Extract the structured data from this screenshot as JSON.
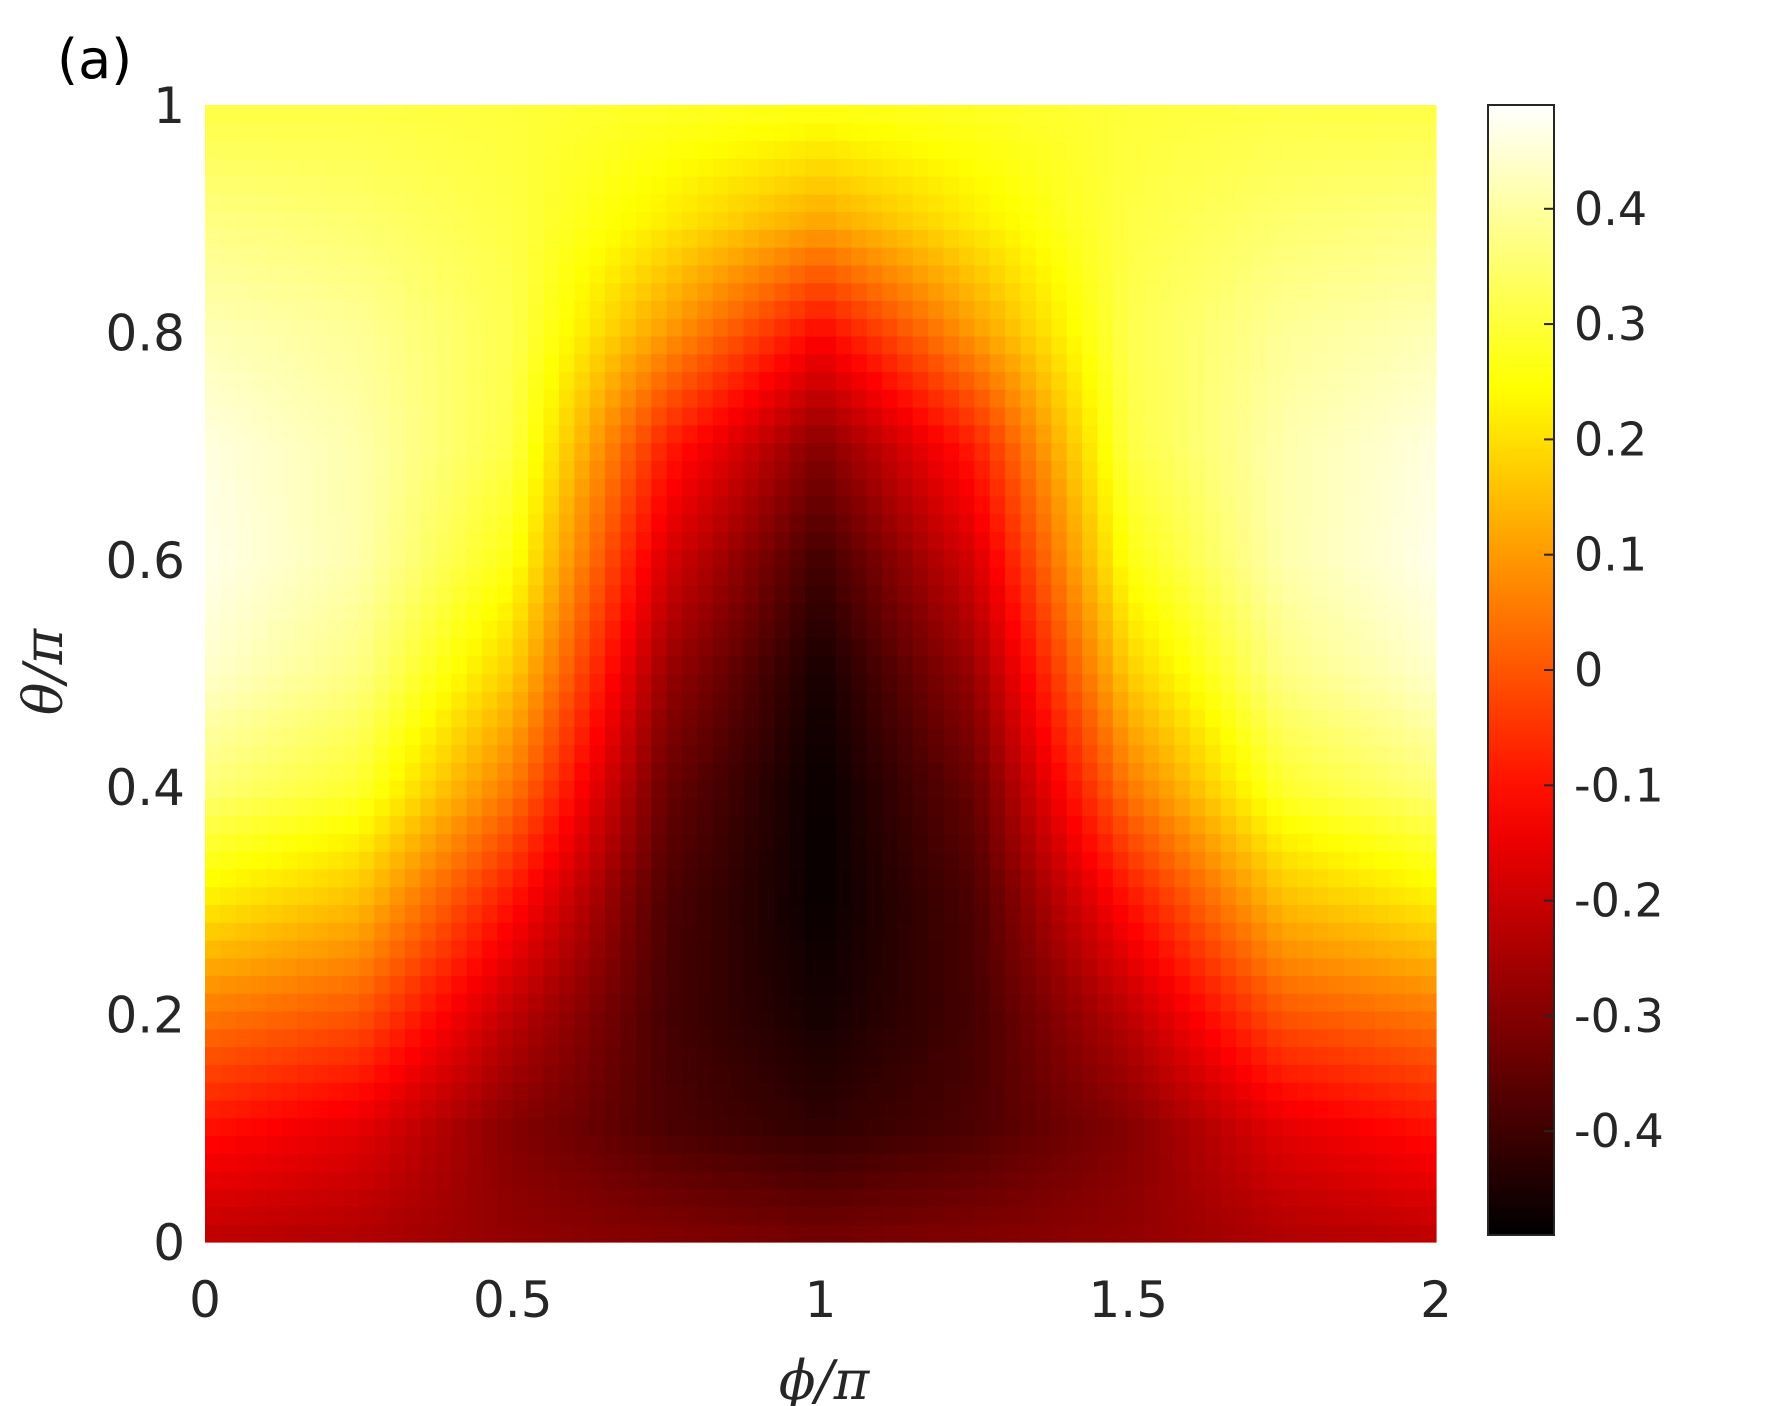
{
  "panel_label": "(a)",
  "chart_data": {
    "type": "heatmap",
    "title": "",
    "xlabel": "ϕ/π",
    "ylabel": "θ/π",
    "xlim": [
      0,
      2
    ],
    "ylim": [
      0,
      1
    ],
    "xticks": [
      0,
      0.5,
      1,
      1.5,
      2
    ],
    "xtick_labels": [
      "0",
      "0.5",
      "1",
      "1.5",
      "2"
    ],
    "yticks": [
      0,
      0.2,
      0.4,
      0.6,
      0.8,
      1
    ],
    "ytick_labels": [
      "0",
      "0.2",
      "0.4",
      "0.6",
      "0.8",
      "1"
    ],
    "colormap": "hot",
    "colorbar": {
      "range": [
        -0.49,
        0.49
      ],
      "ticks": [
        -0.4,
        -0.3,
        -0.2,
        -0.1,
        0,
        0.1,
        0.2,
        0.3,
        0.4
      ],
      "tick_labels": [
        "-0.4",
        "-0.3",
        "-0.2",
        "-0.1",
        "0",
        "0.1",
        "0.2",
        "0.3",
        "0.4"
      ]
    },
    "x_grid": [
      0,
      0.25,
      0.5,
      0.75,
      1,
      1.25,
      1.5,
      1.75,
      2
    ],
    "y_grid": [
      0,
      0.1,
      0.2,
      0.3,
      0.4,
      0.5,
      0.6,
      0.7,
      0.8,
      0.9,
      1
    ],
    "z": [
      [
        -0.22,
        -0.24,
        -0.28,
        -0.3,
        -0.32,
        -0.3,
        -0.28,
        -0.24,
        -0.22
      ],
      [
        -0.1,
        -0.16,
        -0.3,
        -0.38,
        -0.42,
        -0.38,
        -0.3,
        -0.16,
        -0.1
      ],
      [
        0.05,
        0.0,
        -0.22,
        -0.39,
        -0.46,
        -0.39,
        -0.22,
        0.0,
        0.05
      ],
      [
        0.22,
        0.15,
        -0.1,
        -0.38,
        -0.48,
        -0.38,
        -0.1,
        0.15,
        0.22
      ],
      [
        0.36,
        0.29,
        0.05,
        -0.34,
        -0.48,
        -0.34,
        0.05,
        0.29,
        0.36
      ],
      [
        0.44,
        0.37,
        0.17,
        -0.27,
        -0.46,
        -0.27,
        0.17,
        0.37,
        0.44
      ],
      [
        0.47,
        0.41,
        0.26,
        -0.18,
        -0.4,
        -0.18,
        0.26,
        0.41,
        0.47
      ],
      [
        0.46,
        0.41,
        0.31,
        -0.08,
        -0.3,
        -0.08,
        0.31,
        0.41,
        0.46
      ],
      [
        0.42,
        0.39,
        0.32,
        0.1,
        -0.12,
        0.1,
        0.32,
        0.39,
        0.42
      ],
      [
        0.37,
        0.35,
        0.31,
        0.22,
        0.12,
        0.22,
        0.31,
        0.35,
        0.37
      ],
      [
        0.31,
        0.31,
        0.3,
        0.28,
        0.27,
        0.28,
        0.3,
        0.31,
        0.31
      ]
    ]
  }
}
